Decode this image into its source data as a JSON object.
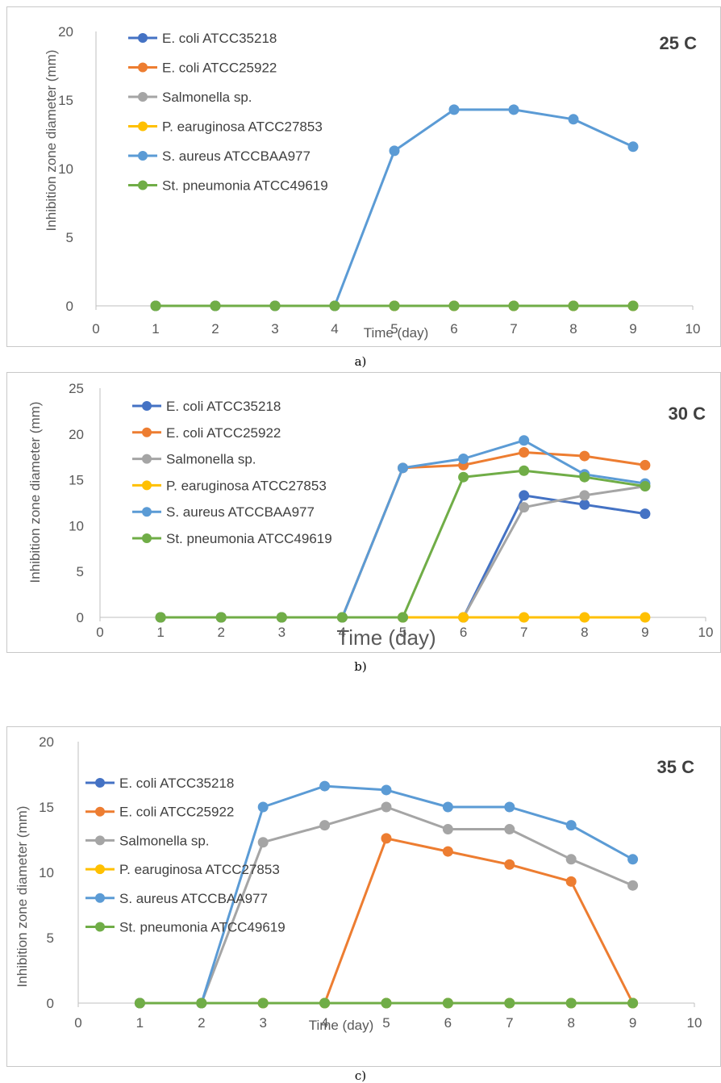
{
  "series_colors": {
    "E. coli ATCC35218": "#4472C4",
    "E. coli ATCC25922": "#ED7D31",
    "Salmonella sp.": "#A5A5A5",
    "P. earuginosa ATCC27853": "#FFC000",
    "S. aureus ATCCBAA977": "#5B9BD5",
    "St. pneumonia ATCC49619": "#70AD47"
  },
  "captions": [
    "a)",
    "b)",
    "c)"
  ],
  "chart_data": [
    {
      "type": "line",
      "title": "25 C",
      "xlabel": "Time (day)",
      "ylabel": "Inhibition zone diameter (mm)",
      "xlim": [
        0,
        10
      ],
      "ylim": [
        0,
        20
      ],
      "x_ticks": [
        0,
        1,
        2,
        3,
        4,
        5,
        6,
        7,
        8,
        9,
        10
      ],
      "y_ticks": [
        0,
        5,
        10,
        15,
        20
      ],
      "grid": false,
      "legend_position": "upper-left",
      "x": [
        1,
        2,
        3,
        4,
        5,
        6,
        7,
        8,
        9
      ],
      "series": [
        {
          "name": "E. coli ATCC35218",
          "values": [
            0,
            0,
            0,
            0,
            0,
            0,
            0,
            0,
            0
          ]
        },
        {
          "name": "E. coli ATCC25922",
          "values": [
            0,
            0,
            0,
            0,
            0,
            0,
            0,
            0,
            0
          ]
        },
        {
          "name": "Salmonella sp.",
          "values": [
            0,
            0,
            0,
            0,
            0,
            0,
            0,
            0,
            0
          ]
        },
        {
          "name": "P. earuginosa ATCC27853",
          "values": [
            0,
            0,
            0,
            0,
            0,
            0,
            0,
            0,
            0
          ]
        },
        {
          "name": "S. aureus ATCCBAA977",
          "values": [
            0,
            0,
            0,
            0,
            11.3,
            14.3,
            14.3,
            13.6,
            11.6
          ]
        },
        {
          "name": "St. pneumonia ATCC49619",
          "values": [
            0,
            0,
            0,
            0,
            0,
            0,
            0,
            0,
            0
          ]
        }
      ]
    },
    {
      "type": "line",
      "title": "30 C",
      "xlabel": "Time (day)",
      "ylabel": "Inhibition zone diameter (mm)",
      "xlim": [
        0,
        10
      ],
      "ylim": [
        0,
        25
      ],
      "x_ticks": [
        0,
        1,
        2,
        3,
        4,
        5,
        6,
        7,
        8,
        9,
        10
      ],
      "y_ticks": [
        0,
        5,
        10,
        15,
        20,
        25
      ],
      "grid": false,
      "legend_position": "upper-left",
      "x": [
        1,
        2,
        3,
        4,
        5,
        6,
        7,
        8,
        9
      ],
      "series": [
        {
          "name": "E. coli ATCC35218",
          "values": [
            0,
            0,
            0,
            0,
            0,
            0,
            13.3,
            12.3,
            11.3
          ]
        },
        {
          "name": "E. coli ATCC25922",
          "values": [
            0,
            0,
            0,
            0,
            16.3,
            16.6,
            18,
            17.6,
            16.6
          ]
        },
        {
          "name": "Salmonella sp.",
          "values": [
            0,
            0,
            0,
            0,
            0,
            0,
            12,
            13.3,
            14.3
          ]
        },
        {
          "name": "P. earuginosa ATCC27853",
          "values": [
            0,
            0,
            0,
            0,
            0,
            0,
            0,
            0,
            0
          ]
        },
        {
          "name": "S. aureus ATCCBAA977",
          "values": [
            0,
            0,
            0,
            0,
            16.3,
            17.3,
            19.3,
            15.6,
            14.6
          ]
        },
        {
          "name": "St. pneumonia ATCC49619",
          "values": [
            0,
            0,
            0,
            0,
            0,
            15.3,
            16,
            15.3,
            14.3
          ]
        }
      ]
    },
    {
      "type": "line",
      "title": "35 C",
      "xlabel": "Time (day)",
      "ylabel": "Inhibition zone diameter (mm)",
      "xlim": [
        0,
        10
      ],
      "ylim": [
        0,
        20
      ],
      "x_ticks": [
        0,
        1,
        2,
        3,
        4,
        5,
        6,
        7,
        8,
        9,
        10
      ],
      "y_ticks": [
        0,
        5,
        10,
        15,
        20
      ],
      "grid": false,
      "legend_position": "upper-left",
      "x": [
        1,
        2,
        3,
        4,
        5,
        6,
        7,
        8,
        9
      ],
      "series": [
        {
          "name": "E. coli ATCC35218",
          "values": [
            0,
            0,
            0,
            0,
            0,
            0,
            0,
            0,
            0
          ]
        },
        {
          "name": "E. coli ATCC25922",
          "values": [
            0,
            0,
            0,
            0,
            12.6,
            11.6,
            10.6,
            9.3,
            0
          ]
        },
        {
          "name": "Salmonella sp.",
          "values": [
            0,
            0,
            12.3,
            13.6,
            15,
            13.3,
            13.3,
            11,
            9
          ]
        },
        {
          "name": "P. earuginosa ATCC27853",
          "values": [
            0,
            0,
            0,
            0,
            0,
            0,
            0,
            0,
            0
          ]
        },
        {
          "name": "S. aureus ATCCBAA977",
          "values": [
            0,
            0,
            15,
            16.6,
            16.3,
            15,
            15,
            13.6,
            11
          ]
        },
        {
          "name": "St. pneumonia ATCC49619",
          "values": [
            0,
            0,
            0,
            0,
            0,
            0,
            0,
            0,
            0
          ]
        }
      ]
    }
  ]
}
